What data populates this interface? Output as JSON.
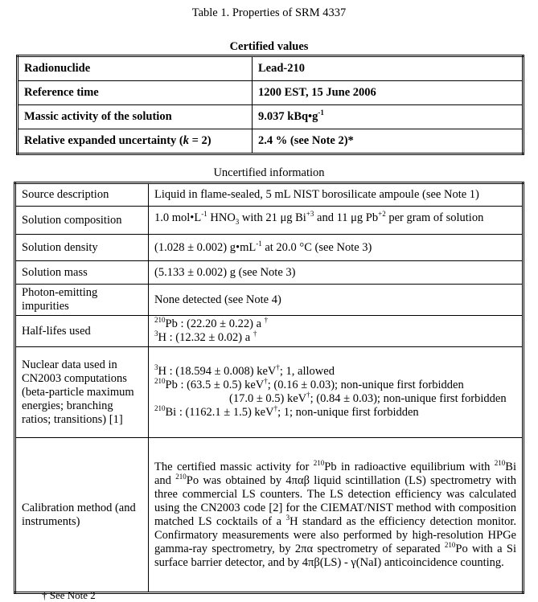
{
  "title": "Table 1. Properties of SRM 4337",
  "certified": {
    "heading": "Certified values",
    "rows": [
      {
        "label": "Radionuclide",
        "value": "Lead-210"
      },
      {
        "label": "Reference time",
        "value": "1200 EST, 15 June 2006"
      },
      {
        "label": "Massic activity of the solution",
        "value": "9.037 kBq•g",
        "value_sup": "-1"
      },
      {
        "label_a": "Relative expanded uncertainty (",
        "label_k": "k",
        "label_b": " = 2)",
        "value": "2.4 %  (see Note 2)*"
      }
    ]
  },
  "uncertified": {
    "heading": "Uncertified information",
    "source": {
      "label": "Source description",
      "value": "Liquid in flame-sealed, 5 mL NIST borosilicate ampoule (see Note 1)"
    },
    "composition": {
      "label": "Solution composition",
      "a": "1.0 mol•L",
      "s1": "-1",
      "b": " HNO",
      "sub": "3",
      "c": " with 21 μg Bi",
      "s2": "+3",
      "d": " and 11 μg Pb",
      "s3": "+2",
      "e": " per gram of solution"
    },
    "density": {
      "label": "Solution density",
      "a": "(1.028 ± 0.002) g•mL",
      "s": "-1",
      "b": " at 20.0 °C  (see Note 3)"
    },
    "mass": {
      "label": "Solution mass",
      "value": "(5.133 ± 0.002) g  (see Note 3)"
    },
    "photon": {
      "label": "Photon-emitting impurities",
      "value": "None detected (see Note 4)"
    },
    "halflives": {
      "label": "Half-lifes used",
      "l1m": "210",
      "l1": "Pb : (22.20 ± 0.22) a ",
      "l2m": "3",
      "l2": "H   : (12.32 ± 0.02) a ",
      "dagger": "†"
    },
    "nuclear": {
      "label": "Nuclear data used in CN2003 computations (beta-particle maximum energies; branching ratios; transitions) [1]",
      "lines": [
        {
          "m": "3",
          "n": "H     : (18.594 ± 0.008) keV",
          "t": "; 1, allowed"
        },
        {
          "m": "210",
          "n": "Pb : (63.5 ± 0.5) keV",
          "t": "; (0.16 ± 0.03); non-unique first forbidden"
        },
        {
          "m": "",
          "n": "(17.0 ± 0.5) keV",
          "t": "; (0.84 ± 0.03); non-unique first forbidden"
        },
        {
          "m": "210",
          "n": "Bi  : (1162.1 ± 1.5) keV",
          "t": "; 1; non-unique first forbidden"
        }
      ]
    },
    "calibration": {
      "label": "Calibration method (and instruments)",
      "text": [
        "The certified massic activity for ",
        "210",
        "Pb in radioactive equilibrium with ",
        "210",
        "Bi and ",
        "210",
        "Po was obtained by 4παβ liquid scintillation (LS) spectrometry with three commercial LS counters. The LS detection efficiency was calculated using the CN2003 code [2] for the CIEMAT/NIST method with composition matched LS cocktails of a ",
        "3",
        "H standard as the efficiency detection monitor. Confirmatory measurements were also performed by high-resolution HPGe gamma-ray spectrometry, by 2πα spectrometry of separated ",
        "210",
        "Po with a Si surface barrier detector, and by 4πβ(LS) - γ(NaI) anticoincidence counting."
      ]
    }
  },
  "footnote": "† See Note 2"
}
